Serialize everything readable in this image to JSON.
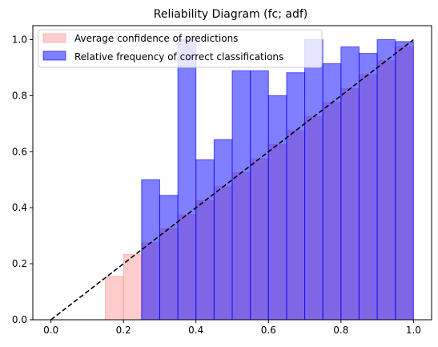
{
  "chart_data": {
    "type": "bar",
    "title": "Reliability Diagram (fc; adf)",
    "xlabel": "",
    "ylabel": "",
    "xlim": [
      -0.05,
      1.05
    ],
    "ylim": [
      0,
      1.05
    ],
    "xticks": [
      0.0,
      0.2,
      0.4,
      0.6,
      0.8,
      1.0
    ],
    "yticks": [
      0.0,
      0.2,
      0.4,
      0.6,
      0.8,
      1.0
    ],
    "xtick_labels": [
      "0.0",
      "0.2",
      "0.4",
      "0.6",
      "0.8",
      "1.0"
    ],
    "ytick_labels": [
      "0.0",
      "0.2",
      "0.4",
      "0.6",
      "0.8",
      "1.0"
    ],
    "bin_width": 0.05,
    "bin_left_edges": [
      0.15,
      0.2,
      0.25,
      0.3,
      0.35,
      0.4,
      0.45,
      0.5,
      0.55,
      0.6,
      0.65,
      0.7,
      0.75,
      0.8,
      0.85,
      0.9,
      0.95
    ],
    "legend_position": "upper-left",
    "grid": false,
    "series": [
      {
        "name": "Average confidence of predictions",
        "color": "#ff9999",
        "values": [
          0.155,
          0.233,
          0.275,
          0.325,
          0.375,
          0.425,
          0.475,
          0.525,
          0.575,
          0.625,
          0.675,
          0.725,
          0.775,
          0.825,
          0.875,
          0.925,
          0.975
        ]
      },
      {
        "name": "Relative frequency of correct classifications",
        "color": "#0000ff",
        "values": [
          0.0,
          0.0,
          0.5,
          0.444,
          1.0,
          0.571,
          0.643,
          0.889,
          0.889,
          0.8,
          0.882,
          1.0,
          0.914,
          0.974,
          0.951,
          1.0,
          0.993
        ]
      }
    ],
    "reference_line": {
      "from": [
        0,
        0
      ],
      "to": [
        1,
        1
      ],
      "style": "dashed",
      "color": "#000000"
    }
  }
}
